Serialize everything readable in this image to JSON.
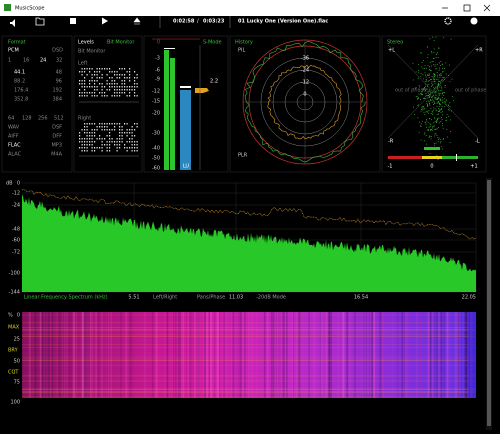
{
  "window": {
    "title": "MusicScope"
  },
  "toolbar": {
    "elapsed": "0:02:58",
    "separator": "/",
    "total": "0:03:23",
    "track": "01 Lucky One (Version One).flac"
  },
  "format": {
    "title": "Format",
    "pcm": "PCM",
    "dsd": "DSD",
    "bits": [
      "1",
      "16",
      "24",
      "32"
    ],
    "rates": [
      [
        "44.1",
        "48"
      ],
      [
        "88.2",
        "96"
      ],
      [
        "176.4",
        "192"
      ],
      [
        "352.8",
        "384"
      ]
    ],
    "dsd_rates": [
      "64",
      "128",
      "256",
      "512"
    ],
    "files": [
      [
        "WAV",
        "DSF"
      ],
      [
        "AIFF",
        "DFF"
      ],
      [
        "FLAC",
        "MP3"
      ],
      [
        "ALAC",
        "M4A"
      ]
    ]
  },
  "levels": {
    "title": "Levels",
    "mode": "Bit Monitor",
    "subtitle": "Bit Monitor",
    "left": "Left",
    "right": "Right"
  },
  "meter": {
    "scale": [
      "0",
      "-3",
      "-6",
      "-9",
      "-12",
      "-15",
      "-20",
      "-30",
      "-40",
      "-50",
      "-60"
    ],
    "mode": "S-Mode",
    "unit": "LU",
    "reading": "2.2"
  },
  "history": {
    "title": "History",
    "pil": "PIL",
    "plr": "PLR",
    "rings": [
      "-36",
      "-24",
      "-12",
      "0"
    ]
  },
  "stereo": {
    "title": "Stereo",
    "plus_l": "+L",
    "plus_r": "+R",
    "minus_r": "-R",
    "minus_l": "-L",
    "phase_left": "out of phase",
    "phase_right": "out of phase",
    "scale": [
      "-1",
      "0",
      "+1"
    ]
  },
  "spectrum": {
    "unit": "dB",
    "yticks": [
      "0",
      "-12",
      "-24",
      "-48",
      "-60",
      "-72",
      "-100",
      "-144"
    ],
    "xlabel": "Linear Frequency Spectrum (kHz)",
    "xticks": [
      "5.51",
      "11.03",
      "16.54",
      "22.05"
    ],
    "modes": [
      "Left/Right",
      "Pans/Phase",
      "-20dB Mode"
    ]
  },
  "spectrogram": {
    "unit": "%",
    "yticks": [
      "0",
      "25",
      "50",
      "75",
      "100"
    ],
    "modes": [
      "MAX",
      "BRY",
      "CQT"
    ]
  }
}
